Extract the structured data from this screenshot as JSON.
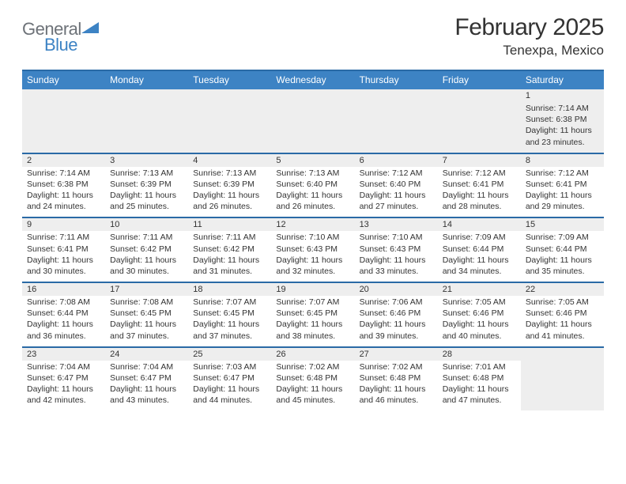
{
  "logo": {
    "text1": "General",
    "text2": "Blue"
  },
  "title": "February 2025",
  "location": "Tenexpa, Mexico",
  "colors": {
    "header_bg": "#3d83c4",
    "header_border": "#2a6aa6",
    "blank_bg": "#eeeeee",
    "text": "#333333",
    "logo_gray": "#6d7278",
    "logo_blue": "#3d83c4"
  },
  "weekdays": [
    "Sunday",
    "Monday",
    "Tuesday",
    "Wednesday",
    "Thursday",
    "Friday",
    "Saturday"
  ],
  "days": [
    {
      "n": "1",
      "sunrise": "Sunrise: 7:14 AM",
      "sunset": "Sunset: 6:38 PM",
      "day1": "Daylight: 11 hours",
      "day2": "and 23 minutes."
    },
    {
      "n": "2",
      "sunrise": "Sunrise: 7:14 AM",
      "sunset": "Sunset: 6:38 PM",
      "day1": "Daylight: 11 hours",
      "day2": "and 24 minutes."
    },
    {
      "n": "3",
      "sunrise": "Sunrise: 7:13 AM",
      "sunset": "Sunset: 6:39 PM",
      "day1": "Daylight: 11 hours",
      "day2": "and 25 minutes."
    },
    {
      "n": "4",
      "sunrise": "Sunrise: 7:13 AM",
      "sunset": "Sunset: 6:39 PM",
      "day1": "Daylight: 11 hours",
      "day2": "and 26 minutes."
    },
    {
      "n": "5",
      "sunrise": "Sunrise: 7:13 AM",
      "sunset": "Sunset: 6:40 PM",
      "day1": "Daylight: 11 hours",
      "day2": "and 26 minutes."
    },
    {
      "n": "6",
      "sunrise": "Sunrise: 7:12 AM",
      "sunset": "Sunset: 6:40 PM",
      "day1": "Daylight: 11 hours",
      "day2": "and 27 minutes."
    },
    {
      "n": "7",
      "sunrise": "Sunrise: 7:12 AM",
      "sunset": "Sunset: 6:41 PM",
      "day1": "Daylight: 11 hours",
      "day2": "and 28 minutes."
    },
    {
      "n": "8",
      "sunrise": "Sunrise: 7:12 AM",
      "sunset": "Sunset: 6:41 PM",
      "day1": "Daylight: 11 hours",
      "day2": "and 29 minutes."
    },
    {
      "n": "9",
      "sunrise": "Sunrise: 7:11 AM",
      "sunset": "Sunset: 6:41 PM",
      "day1": "Daylight: 11 hours",
      "day2": "and 30 minutes."
    },
    {
      "n": "10",
      "sunrise": "Sunrise: 7:11 AM",
      "sunset": "Sunset: 6:42 PM",
      "day1": "Daylight: 11 hours",
      "day2": "and 30 minutes."
    },
    {
      "n": "11",
      "sunrise": "Sunrise: 7:11 AM",
      "sunset": "Sunset: 6:42 PM",
      "day1": "Daylight: 11 hours",
      "day2": "and 31 minutes."
    },
    {
      "n": "12",
      "sunrise": "Sunrise: 7:10 AM",
      "sunset": "Sunset: 6:43 PM",
      "day1": "Daylight: 11 hours",
      "day2": "and 32 minutes."
    },
    {
      "n": "13",
      "sunrise": "Sunrise: 7:10 AM",
      "sunset": "Sunset: 6:43 PM",
      "day1": "Daylight: 11 hours",
      "day2": "and 33 minutes."
    },
    {
      "n": "14",
      "sunrise": "Sunrise: 7:09 AM",
      "sunset": "Sunset: 6:44 PM",
      "day1": "Daylight: 11 hours",
      "day2": "and 34 minutes."
    },
    {
      "n": "15",
      "sunrise": "Sunrise: 7:09 AM",
      "sunset": "Sunset: 6:44 PM",
      "day1": "Daylight: 11 hours",
      "day2": "and 35 minutes."
    },
    {
      "n": "16",
      "sunrise": "Sunrise: 7:08 AM",
      "sunset": "Sunset: 6:44 PM",
      "day1": "Daylight: 11 hours",
      "day2": "and 36 minutes."
    },
    {
      "n": "17",
      "sunrise": "Sunrise: 7:08 AM",
      "sunset": "Sunset: 6:45 PM",
      "day1": "Daylight: 11 hours",
      "day2": "and 37 minutes."
    },
    {
      "n": "18",
      "sunrise": "Sunrise: 7:07 AM",
      "sunset": "Sunset: 6:45 PM",
      "day1": "Daylight: 11 hours",
      "day2": "and 37 minutes."
    },
    {
      "n": "19",
      "sunrise": "Sunrise: 7:07 AM",
      "sunset": "Sunset: 6:45 PM",
      "day1": "Daylight: 11 hours",
      "day2": "and 38 minutes."
    },
    {
      "n": "20",
      "sunrise": "Sunrise: 7:06 AM",
      "sunset": "Sunset: 6:46 PM",
      "day1": "Daylight: 11 hours",
      "day2": "and 39 minutes."
    },
    {
      "n": "21",
      "sunrise": "Sunrise: 7:05 AM",
      "sunset": "Sunset: 6:46 PM",
      "day1": "Daylight: 11 hours",
      "day2": "and 40 minutes."
    },
    {
      "n": "22",
      "sunrise": "Sunrise: 7:05 AM",
      "sunset": "Sunset: 6:46 PM",
      "day1": "Daylight: 11 hours",
      "day2": "and 41 minutes."
    },
    {
      "n": "23",
      "sunrise": "Sunrise: 7:04 AM",
      "sunset": "Sunset: 6:47 PM",
      "day1": "Daylight: 11 hours",
      "day2": "and 42 minutes."
    },
    {
      "n": "24",
      "sunrise": "Sunrise: 7:04 AM",
      "sunset": "Sunset: 6:47 PM",
      "day1": "Daylight: 11 hours",
      "day2": "and 43 minutes."
    },
    {
      "n": "25",
      "sunrise": "Sunrise: 7:03 AM",
      "sunset": "Sunset: 6:47 PM",
      "day1": "Daylight: 11 hours",
      "day2": "and 44 minutes."
    },
    {
      "n": "26",
      "sunrise": "Sunrise: 7:02 AM",
      "sunset": "Sunset: 6:48 PM",
      "day1": "Daylight: 11 hours",
      "day2": "and 45 minutes."
    },
    {
      "n": "27",
      "sunrise": "Sunrise: 7:02 AM",
      "sunset": "Sunset: 6:48 PM",
      "day1": "Daylight: 11 hours",
      "day2": "and 46 minutes."
    },
    {
      "n": "28",
      "sunrise": "Sunrise: 7:01 AM",
      "sunset": "Sunset: 6:48 PM",
      "day1": "Daylight: 11 hours",
      "day2": "and 47 minutes."
    }
  ]
}
